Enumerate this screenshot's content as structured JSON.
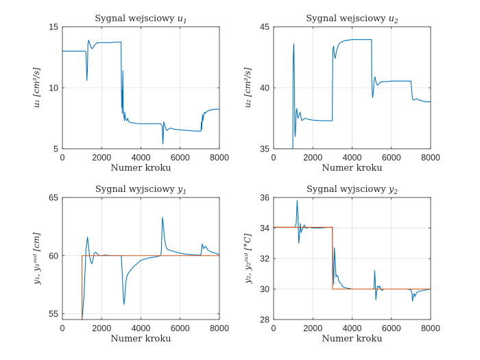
{
  "chart_data": [
    {
      "type": "line",
      "title": "Sygnal wejsciowy u",
      "title_sub": "1",
      "xlabel": "Numer kroku",
      "ylabel": "u₁ [cm³/s]",
      "xlim": [
        0,
        8000
      ],
      "ylim": [
        5,
        15
      ],
      "xticks": [
        "0",
        "2000",
        "4000",
        "6000",
        "8000"
      ],
      "yticks": [
        "5",
        "10",
        "15"
      ],
      "grid": true,
      "series": [
        {
          "color": "#0072BD",
          "x": [
            0,
            1150,
            1200,
            1230,
            1250,
            1280,
            1300,
            1340,
            1380,
            1420,
            1460,
            1520,
            1600,
            1700,
            1800,
            2000,
            2400,
            2800,
            2990,
            3000,
            3020,
            3040,
            3050,
            3060,
            3080,
            3100,
            3120,
            3140,
            3160,
            3180,
            3200,
            3240,
            3280,
            3320,
            3360,
            3400,
            3500,
            3700,
            3900,
            4200,
            4600,
            5000,
            5080,
            5100,
            5120,
            5140,
            5160,
            5200,
            5260,
            5320,
            5400,
            5500,
            5700,
            6000,
            6400,
            6800,
            7060,
            7080,
            7100,
            7120,
            7140,
            7160,
            7200,
            7240,
            7280,
            7320,
            7400,
            7600,
            7800,
            8000
          ],
          "y": [
            13.0,
            13.0,
            12.9,
            11.5,
            10.6,
            11.8,
            13.6,
            13.9,
            13.7,
            13.5,
            13.3,
            13.2,
            13.4,
            13.6,
            13.7,
            13.7,
            13.7,
            13.75,
            13.75,
            11.0,
            8.4,
            9.8,
            7.9,
            9.0,
            11.4,
            8.5,
            7.7,
            7.6,
            7.3,
            8.0,
            7.6,
            7.4,
            7.3,
            7.5,
            7.3,
            7.2,
            7.15,
            7.1,
            7.05,
            7.05,
            7.05,
            7.05,
            6.9,
            6.2,
            5.4,
            6.0,
            7.2,
            7.0,
            6.7,
            6.5,
            6.6,
            6.7,
            6.6,
            6.55,
            6.5,
            6.45,
            6.45,
            7.2,
            6.6,
            7.3,
            7.8,
            7.3,
            7.7,
            8.0,
            7.9,
            8.0,
            8.1,
            8.2,
            8.25,
            8.25
          ]
        }
      ]
    },
    {
      "type": "line",
      "title": "Sygnal wejsciowy u",
      "title_sub": "2",
      "xlabel": "Numer kroku",
      "ylabel": "u₂ [cm³/s]",
      "xlim": [
        0,
        8000
      ],
      "ylim": [
        35,
        45
      ],
      "xticks": [
        "0",
        "2000",
        "4000",
        "6000",
        "8000"
      ],
      "yticks": [
        "35",
        "40",
        "45"
      ],
      "grid": true,
      "series": [
        {
          "color": "#0072BD",
          "x": [
            0,
            980,
            990,
            1000,
            1030,
            1060,
            1080,
            1100,
            1120,
            1150,
            1180,
            1210,
            1240,
            1270,
            1300,
            1350,
            1400,
            1450,
            1500,
            1600,
            1800,
            2000,
            2400,
            2800,
            2990,
            3000,
            3020,
            3060,
            3100,
            3140,
            3200,
            3300,
            3400,
            3600,
            3800,
            4000,
            4400,
            4800,
            4990,
            5000,
            5040,
            5080,
            5120,
            5160,
            5200,
            5250,
            5300,
            5400,
            5500,
            5600,
            5800,
            6000,
            6400,
            6800,
            7000,
            7040,
            7080,
            7120,
            7160,
            7200,
            7300,
            7400,
            7600,
            7800,
            8000
          ],
          "y": [
            35.0,
            35.0,
            40.0,
            42.5,
            43.6,
            41.0,
            36.5,
            36.0,
            36.6,
            38.0,
            38.3,
            37.8,
            37.5,
            37.6,
            37.8,
            38.0,
            37.5,
            37.3,
            37.4,
            37.5,
            37.4,
            37.35,
            37.3,
            37.3,
            37.3,
            40.0,
            43.2,
            43.4,
            42.6,
            42.4,
            43.0,
            43.5,
            43.7,
            43.85,
            43.9,
            43.95,
            43.95,
            43.95,
            43.95,
            40.5,
            39.2,
            39.6,
            40.6,
            40.9,
            40.6,
            40.3,
            40.2,
            40.4,
            40.5,
            40.5,
            40.5,
            40.55,
            40.55,
            40.55,
            40.55,
            39.6,
            39.1,
            39.0,
            39.0,
            39.05,
            39.1,
            39.0,
            38.9,
            38.85,
            38.85
          ]
        }
      ]
    },
    {
      "type": "line",
      "title": "Sygnal wyjsciowy y",
      "title_sub": "1",
      "xlabel": "Numer kroku",
      "ylabel": "y₁, y₁ᶻᵘᵈ [cm]",
      "xlim": [
        0,
        8000
      ],
      "ylim": [
        54.5,
        65
      ],
      "xticks": [
        "0",
        "2000",
        "4000",
        "6000",
        "8000"
      ],
      "yticks": [
        "55",
        "60",
        "65"
      ],
      "grid": true,
      "series": [
        {
          "color": "#0072BD",
          "x": [
            0,
            990,
            1000,
            1100,
            1200,
            1280,
            1320,
            1380,
            1440,
            1500,
            1560,
            1620,
            1700,
            1800,
            1900,
            2000,
            2200,
            2500,
            2800,
            2990,
            3000,
            3050,
            3100,
            3140,
            3180,
            3220,
            3260,
            3300,
            3360,
            3420,
            3500,
            3600,
            3800,
            4000,
            4400,
            4800,
            5000,
            5040,
            5070,
            5100,
            5150,
            5200,
            5260,
            5320,
            5400,
            5500,
            5600,
            5800,
            6000,
            6400,
            6800,
            7000,
            7040,
            7080,
            7120,
            7160,
            7200,
            7240,
            7300,
            7400,
            7600,
            7800,
            8000
          ],
          "y": [
            54.4,
            54.4,
            54.4,
            56.5,
            60.5,
            61.6,
            61.0,
            60.0,
            59.5,
            59.3,
            59.7,
            60.2,
            60.3,
            60.1,
            60.0,
            60.0,
            60.05,
            60.0,
            60.0,
            60.0,
            59.9,
            58.5,
            56.5,
            55.8,
            56.5,
            57.5,
            58.0,
            58.3,
            58.5,
            58.6,
            58.8,
            59.0,
            59.3,
            59.6,
            59.8,
            59.9,
            60.0,
            60.3,
            62.0,
            63.3,
            62.5,
            61.5,
            60.9,
            60.6,
            60.5,
            60.45,
            60.4,
            60.3,
            60.2,
            60.1,
            60.05,
            60.05,
            60.0,
            60.3,
            61.0,
            60.8,
            60.6,
            60.7,
            60.8,
            60.5,
            60.3,
            60.2,
            60.1
          ]
        },
        {
          "color": "#D95319",
          "x": [
            0,
            1000,
            1000,
            8000
          ],
          "y": [
            54.4,
            54.4,
            60.0,
            60.0
          ]
        }
      ]
    },
    {
      "type": "line",
      "title": "Sygnal wyjsciowy y",
      "title_sub": "2",
      "xlabel": "Numer kroku",
      "ylabel": "y₂, y₂ᶻᵘᵈ [°C]",
      "xlim": [
        0,
        8000
      ],
      "ylim": [
        28,
        36
      ],
      "xticks": [
        "0",
        "2000",
        "4000",
        "6000",
        "8000"
      ],
      "yticks": [
        "28",
        "30",
        "32",
        "34",
        "36"
      ],
      "grid": true,
      "series": [
        {
          "color": "#0072BD",
          "x": [
            0,
            1100,
            1150,
            1200,
            1240,
            1280,
            1320,
            1360,
            1400,
            1450,
            1500,
            1560,
            1620,
            1700,
            1800,
            2000,
            2400,
            2800,
            2990,
            3000,
            3030,
            3060,
            3100,
            3140,
            3180,
            3230,
            3280,
            3330,
            3380,
            3440,
            3500,
            3600,
            3800,
            4000,
            4400,
            4800,
            5080,
            5120,
            5150,
            5180,
            5210,
            5240,
            5270,
            5300,
            5360,
            5400,
            5460,
            5520,
            5600,
            5800,
            6000,
            6400,
            6800,
            7000,
            7050,
            7080,
            7120,
            7160,
            7200,
            7260,
            7320,
            7400,
            7600,
            7800,
            8000
          ],
          "y": [
            34.05,
            34.05,
            34.3,
            35.8,
            34.8,
            33.0,
            33.5,
            34.3,
            33.7,
            33.9,
            34.0,
            34.2,
            34.0,
            34.0,
            34.05,
            34.0,
            34.0,
            34.05,
            34.05,
            33.2,
            31.5,
            30.3,
            32.7,
            31.8,
            30.8,
            30.9,
            30.8,
            30.5,
            30.4,
            30.35,
            30.2,
            30.1,
            30.05,
            30.0,
            30.0,
            30.0,
            30.0,
            30.1,
            31.2,
            30.5,
            29.3,
            29.7,
            30.0,
            30.2,
            30.1,
            30.2,
            30.0,
            29.9,
            30.0,
            30.0,
            30.0,
            30.0,
            30.0,
            29.95,
            29.7,
            29.2,
            29.6,
            29.7,
            29.5,
            29.7,
            29.8,
            29.85,
            29.9,
            29.95,
            30.0
          ]
        },
        {
          "color": "#D95319",
          "x": [
            0,
            3000,
            3000,
            8000
          ],
          "y": [
            34.05,
            34.05,
            30.0,
            30.0
          ]
        }
      ]
    }
  ]
}
